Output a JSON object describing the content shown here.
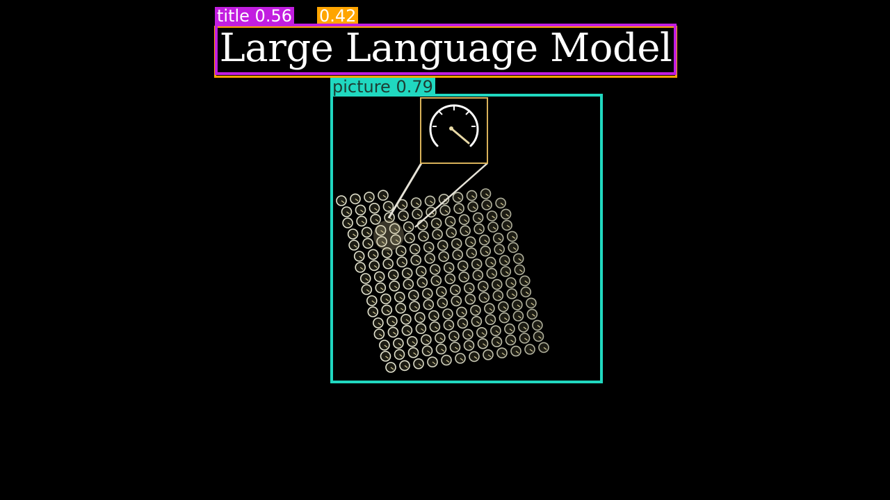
{
  "slide": {
    "title": "Large Language Model",
    "background": "#000000"
  },
  "detections": [
    {
      "label": "title",
      "score": "0.56",
      "text": "title 0.56",
      "color": "#c21ee0"
    },
    {
      "label": "title",
      "score": "0.42",
      "text": "0.42",
      "color": "#ffa500"
    },
    {
      "label": "picture",
      "score": "0.79",
      "text": "picture 0.79",
      "color": "#20d8c0"
    }
  ],
  "picture": {
    "subject": "grid-of-dials-with-magnified-dial",
    "icon": "gauge-icon",
    "accent": "#d9b25a",
    "line": "#e6e3d8"
  }
}
